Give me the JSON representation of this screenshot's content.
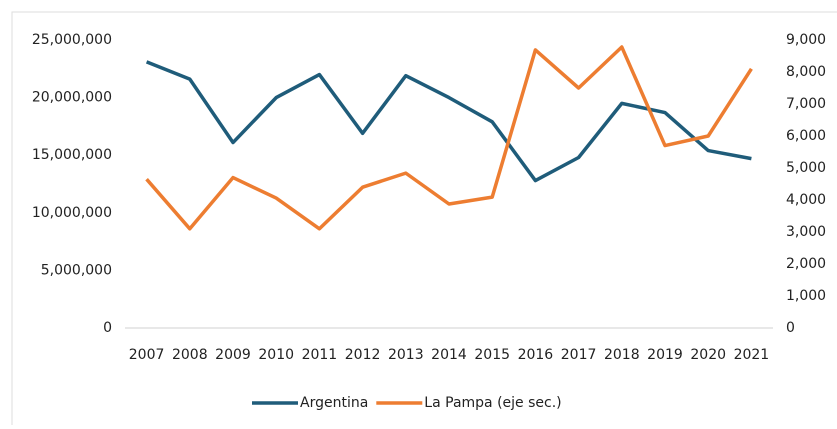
{
  "chart_data": {
    "type": "line",
    "categories": [
      "2007",
      "2008",
      "2009",
      "2010",
      "2011",
      "2012",
      "2013",
      "2014",
      "2015",
      "2016",
      "2017",
      "2018",
      "2019",
      "2020",
      "2021"
    ],
    "series": [
      {
        "name": "Argentina",
        "color": "#1f5c7a",
        "values": [
          23100000,
          21600000,
          16100000,
          20000000,
          22000000,
          16900000,
          21900000,
          20000000,
          17900000,
          12800000,
          14800000,
          19500000,
          18700000,
          15400000,
          14700000
        ]
      },
      {
        "name": "La Pampa (eje sec.)",
        "color": "#ed7d31",
        "axis": "y2",
        "values": [
          4650,
          3100,
          4700,
          4060,
          3100,
          4400,
          4840,
          3875,
          4090,
          8690,
          7500,
          8780,
          5700,
          6000,
          8100
        ]
      }
    ],
    "ylim": [
      0,
      25000000
    ],
    "yticks": [
      0,
      {
        "value": 5000000,
        "label": "5,000,000"
      },
      {
        "value": 10000000,
        "label": "10,000,000"
      },
      {
        "value": 15000000,
        "label": "15,000,000"
      },
      {
        "value": 20000000,
        "label": "20,000,000"
      },
      {
        "value": 25000000,
        "label": "25,000,000"
      }
    ],
    "y2lim": [
      0,
      9000
    ],
    "y2ticks": [
      0,
      {
        "value": 1000,
        "label": "1,000"
      },
      {
        "value": 2000,
        "label": "2,000"
      },
      {
        "value": 3000,
        "label": "3,000"
      },
      {
        "value": 4000,
        "label": "4,000"
      },
      {
        "value": 5000,
        "label": "5,000"
      },
      {
        "value": 6000,
        "label": "6,000"
      },
      {
        "value": 7000,
        "label": "7,000"
      },
      {
        "value": 8000,
        "label": "8,000"
      },
      {
        "value": 9000,
        "label": "9,000"
      }
    ],
    "legend": "bottom"
  }
}
